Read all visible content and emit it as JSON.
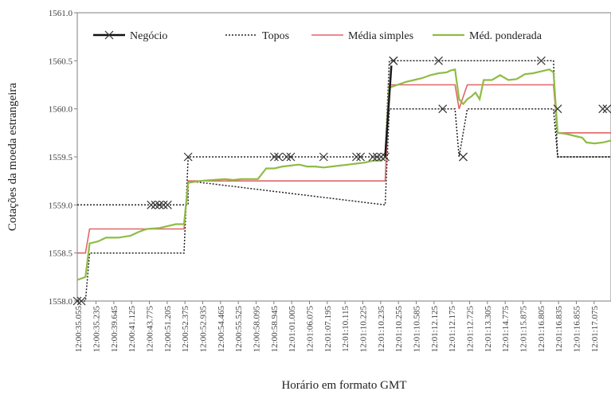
{
  "chart_data": {
    "type": "line",
    "title": "",
    "xlabel": "Horário em formato GMT",
    "ylabel": "Cotações da moeda estrangeira",
    "ylim": [
      1558.0,
      1561.0
    ],
    "yticks": [
      "1558.0",
      "1558.5",
      "1559.0",
      "1559.5",
      "1560.0",
      "1560.5",
      "1561.0"
    ],
    "grid": false,
    "legend_position": "top",
    "categories": [
      "12:00:35.055",
      "12:00:35.235",
      "12:00:39.645",
      "12:00:41.125",
      "12:00:43.775",
      "12:00:51.205",
      "12:00:52.375",
      "12:00:52.935",
      "12:00:54.465",
      "12:00:55.525",
      "12:00:58.095",
      "12:00:58.945",
      "12:01:01.005",
      "12:01:06.075",
      "12:01:07.195",
      "12:01:10.115",
      "12:01:10.225",
      "12:01:10.235",
      "12:01:10.255",
      "12:01:10.585",
      "12:01:12.125",
      "12:01:12.175",
      "12:01:12.725",
      "12:01:13.305",
      "12:01:14.775",
      "12:01:15.875",
      "12:01:16.805",
      "12:01:16.835",
      "12:01:16.855",
      "12:01:17.075"
    ],
    "n_points": 100,
    "series": [
      {
        "name": "Negócio",
        "color": "#1a1a1a",
        "style": "solid-x-markers",
        "points": [
          [
            0,
            1558.0
          ],
          [
            1,
            1558.0
          ],
          [
            18,
            1559.0
          ],
          [
            19,
            1559.0
          ],
          [
            20,
            1559.0
          ],
          [
            21,
            1559.0
          ],
          [
            22,
            1559.0
          ],
          [
            27,
            1559.5
          ],
          [
            48,
            1559.5
          ],
          [
            49,
            1559.5
          ],
          [
            51,
            1559.5
          ],
          [
            52,
            1559.5
          ],
          [
            60,
            1559.5
          ],
          [
            68,
            1559.5
          ],
          [
            69,
            1559.5
          ],
          [
            72,
            1559.5
          ],
          [
            73,
            1559.5
          ],
          [
            74,
            1559.5
          ],
          [
            75,
            1559.5
          ],
          [
            77,
            1560.5
          ],
          [
            77,
            1560.5
          ],
          [
            88,
            1560.5
          ],
          [
            89,
            1560.0
          ],
          [
            94,
            1559.5
          ],
          [
            94,
            1559.5
          ],
          [
            113,
            1560.5
          ],
          [
            117,
            1560.0
          ],
          [
            128,
            1560.0
          ],
          [
            129,
            1560.0
          ]
        ]
      },
      {
        "name": "Topos",
        "color": "#222222",
        "style": "dotted",
        "points": [
          [
            0,
            1558.0
          ],
          [
            2,
            1558.0
          ],
          [
            3,
            1558.5
          ],
          [
            19,
            1558.5
          ],
          [
            20,
            1558.5
          ],
          [
            22,
            1558.5
          ],
          [
            26,
            1558.5
          ],
          [
            27,
            1559.5
          ],
          [
            75,
            1559.5
          ],
          [
            76,
            1560.5
          ],
          [
            116,
            1560.5
          ],
          [
            117,
            1559.5
          ],
          [
            130,
            1559.5
          ]
        ],
        "points_lower": [
          [
            0,
            1559.0
          ],
          [
            26,
            1559.0
          ],
          [
            27,
            1559.0
          ],
          [
            27,
            1559.25
          ],
          [
            75,
            1559.0
          ],
          [
            76,
            1560.0
          ],
          [
            92,
            1560.0
          ],
          [
            93,
            1559.5
          ],
          [
            95,
            1560.0
          ],
          [
            116,
            1560.0
          ],
          [
            117,
            1559.5
          ],
          [
            130,
            1559.5
          ]
        ]
      },
      {
        "name": "Média simples",
        "color": "#e06666",
        "style": "solid",
        "points": [
          [
            0,
            1558.5
          ],
          [
            2,
            1558.5
          ],
          [
            3,
            1558.75
          ],
          [
            26,
            1558.75
          ],
          [
            27,
            1559.25
          ],
          [
            75,
            1559.25
          ],
          [
            76,
            1560.25
          ],
          [
            92,
            1560.25
          ],
          [
            93,
            1560.0
          ],
          [
            95,
            1560.25
          ],
          [
            116,
            1560.25
          ],
          [
            117,
            1559.75
          ],
          [
            130,
            1559.75
          ]
        ]
      },
      {
        "name": "Méd. ponderada",
        "color": "#8fbc45",
        "style": "solid",
        "points": [
          [
            0,
            1558.22
          ],
          [
            2,
            1558.25
          ],
          [
            3,
            1558.6
          ],
          [
            5,
            1558.62
          ],
          [
            7,
            1558.66
          ],
          [
            10,
            1558.66
          ],
          [
            13,
            1558.68
          ],
          [
            15,
            1558.72
          ],
          [
            17,
            1558.75
          ],
          [
            20,
            1558.76
          ],
          [
            22,
            1558.78
          ],
          [
            24,
            1558.8
          ],
          [
            26,
            1558.8
          ],
          [
            27,
            1559.23
          ],
          [
            30,
            1559.25
          ],
          [
            33,
            1559.26
          ],
          [
            36,
            1559.27
          ],
          [
            38,
            1559.26
          ],
          [
            40,
            1559.27
          ],
          [
            42,
            1559.27
          ],
          [
            44,
            1559.27
          ],
          [
            46,
            1559.38
          ],
          [
            48,
            1559.38
          ],
          [
            50,
            1559.4
          ],
          [
            52,
            1559.41
          ],
          [
            54,
            1559.42
          ],
          [
            56,
            1559.4
          ],
          [
            58,
            1559.4
          ],
          [
            60,
            1559.39
          ],
          [
            62,
            1559.4
          ],
          [
            64,
            1559.41
          ],
          [
            66,
            1559.42
          ],
          [
            68,
            1559.43
          ],
          [
            70,
            1559.44
          ],
          [
            72,
            1559.46
          ],
          [
            74,
            1559.46
          ],
          [
            75,
            1559.5
          ],
          [
            76,
            1560.22
          ],
          [
            78,
            1560.25
          ],
          [
            80,
            1560.28
          ],
          [
            82,
            1560.3
          ],
          [
            84,
            1560.32
          ],
          [
            86,
            1560.35
          ],
          [
            88,
            1560.37
          ],
          [
            90,
            1560.38
          ],
          [
            91,
            1560.4
          ],
          [
            92,
            1560.41
          ],
          [
            93,
            1560.1
          ],
          [
            94,
            1560.05
          ],
          [
            95,
            1560.1
          ],
          [
            96,
            1560.13
          ],
          [
            97,
            1560.17
          ],
          [
            98,
            1560.1
          ],
          [
            99,
            1560.3
          ],
          [
            101,
            1560.3
          ],
          [
            103,
            1560.35
          ],
          [
            105,
            1560.3
          ],
          [
            107,
            1560.31
          ],
          [
            109,
            1560.36
          ],
          [
            111,
            1560.37
          ],
          [
            113,
            1560.39
          ],
          [
            115,
            1560.41
          ],
          [
            116,
            1560.38
          ],
          [
            117,
            1559.75
          ],
          [
            119,
            1559.74
          ],
          [
            121,
            1559.72
          ],
          [
            123,
            1559.7
          ],
          [
            124,
            1559.65
          ],
          [
            126,
            1559.64
          ],
          [
            128,
            1559.65
          ],
          [
            129,
            1559.66
          ],
          [
            130,
            1559.67
          ]
        ]
      }
    ]
  }
}
